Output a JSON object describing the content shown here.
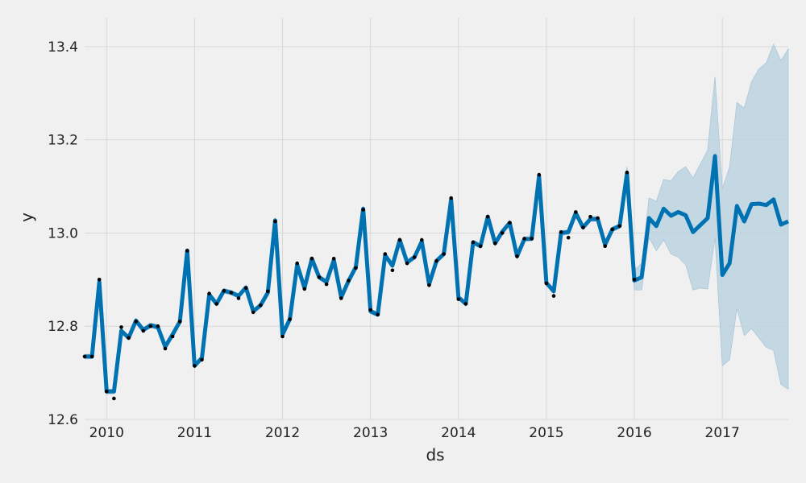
{
  "chart_data": {
    "type": "line",
    "xlabel": "ds",
    "ylabel": "y",
    "xlim": [
      2009.75,
      2017.75
    ],
    "ylim": [
      12.6,
      13.5
    ],
    "grid": true,
    "x_ticks": [
      {
        "value": 2010,
        "label": "2010"
      },
      {
        "value": 2011,
        "label": "2011"
      },
      {
        "value": 2012,
        "label": "2012"
      },
      {
        "value": 2013,
        "label": "2013"
      },
      {
        "value": 2014,
        "label": "2014"
      },
      {
        "value": 2015,
        "label": "2015"
      },
      {
        "value": 2016,
        "label": "2016"
      },
      {
        "value": 2017,
        "label": "2017"
      }
    ],
    "y_ticks": [
      {
        "value": 12.6,
        "label": "12.6"
      },
      {
        "value": 12.8,
        "label": "12.8"
      },
      {
        "value": 13.0,
        "label": "13.0"
      },
      {
        "value": 13.2,
        "label": "13.2"
      },
      {
        "value": 13.4,
        "label": "13.4"
      }
    ],
    "colors": {
      "forecast_line": "#0072b2",
      "uncertainty_band": "#bcd3e2",
      "observed_points": "#000000",
      "grid": "#d8d8d8",
      "background": "#f0f0f0"
    },
    "observed": {
      "x": [
        "2009-10",
        "2009-11",
        "2009-12",
        "2010-01",
        "2010-02",
        "2010-03",
        "2010-04",
        "2010-05",
        "2010-06",
        "2010-07",
        "2010-08",
        "2010-09",
        "2010-10",
        "2010-11",
        "2010-12",
        "2011-01",
        "2011-02",
        "2011-03",
        "2011-04",
        "2011-05",
        "2011-06",
        "2011-07",
        "2011-08",
        "2011-09",
        "2011-10",
        "2011-11",
        "2011-12",
        "2012-01",
        "2012-02",
        "2012-03",
        "2012-04",
        "2012-05",
        "2012-06",
        "2012-07",
        "2012-08",
        "2012-09",
        "2012-10",
        "2012-11",
        "2012-12",
        "2013-01",
        "2013-02",
        "2013-03",
        "2013-04",
        "2013-05",
        "2013-06",
        "2013-07",
        "2013-08",
        "2013-09",
        "2013-10",
        "2013-11",
        "2013-12",
        "2014-01",
        "2014-02",
        "2014-03",
        "2014-04",
        "2014-05",
        "2014-06",
        "2014-07",
        "2014-08",
        "2014-09",
        "2014-10",
        "2014-11",
        "2014-12",
        "2015-01",
        "2015-02",
        "2015-03",
        "2015-04",
        "2015-05",
        "2015-06",
        "2015-07",
        "2015-08",
        "2015-09",
        "2015-10",
        "2015-11",
        "2015-12",
        "2016-01"
      ],
      "y": [
        12.735,
        12.735,
        12.9,
        12.66,
        12.645,
        12.798,
        12.775,
        12.81,
        12.79,
        12.8,
        12.8,
        12.752,
        12.778,
        12.81,
        12.962,
        12.715,
        12.728,
        12.87,
        12.848,
        12.876,
        12.872,
        12.86,
        12.882,
        12.83,
        12.845,
        12.875,
        13.025,
        12.778,
        12.815,
        12.935,
        12.88,
        12.945,
        12.905,
        12.89,
        12.945,
        12.86,
        12.898,
        12.925,
        13.05,
        12.835,
        12.825,
        12.955,
        12.92,
        12.985,
        12.935,
        12.948,
        12.985,
        12.888,
        12.94,
        12.955,
        13.075,
        12.858,
        12.848,
        12.98,
        12.972,
        13.035,
        12.978,
        13.0,
        13.022,
        12.95,
        12.988,
        12.988,
        13.125,
        12.892,
        12.865,
        13.002,
        12.99,
        13.045,
        13.012,
        13.035,
        13.032,
        12.972,
        13.008,
        13.015,
        13.13,
        12.9
      ]
    },
    "forecast": {
      "x": [
        "2009-10",
        "2009-11",
        "2009-12",
        "2010-01",
        "2010-02",
        "2010-03",
        "2010-04",
        "2010-05",
        "2010-06",
        "2010-07",
        "2010-08",
        "2010-09",
        "2010-10",
        "2010-11",
        "2010-12",
        "2011-01",
        "2011-02",
        "2011-03",
        "2011-04",
        "2011-05",
        "2011-06",
        "2011-07",
        "2011-08",
        "2011-09",
        "2011-10",
        "2011-11",
        "2011-12",
        "2012-01",
        "2012-02",
        "2012-03",
        "2012-04",
        "2012-05",
        "2012-06",
        "2012-07",
        "2012-08",
        "2012-09",
        "2012-10",
        "2012-11",
        "2012-12",
        "2013-01",
        "2013-02",
        "2013-03",
        "2013-04",
        "2013-05",
        "2013-06",
        "2013-07",
        "2013-08",
        "2013-09",
        "2013-10",
        "2013-11",
        "2013-12",
        "2014-01",
        "2014-02",
        "2014-03",
        "2014-04",
        "2014-05",
        "2014-06",
        "2014-07",
        "2014-08",
        "2014-09",
        "2014-10",
        "2014-11",
        "2014-12",
        "2015-01",
        "2015-02",
        "2015-03",
        "2015-04",
        "2015-05",
        "2015-06",
        "2015-07",
        "2015-08",
        "2015-09",
        "2015-10",
        "2015-11",
        "2015-12",
        "2016-01",
        "2016-02",
        "2016-03",
        "2016-04",
        "2016-05",
        "2016-06",
        "2016-07",
        "2016-08",
        "2016-09",
        "2016-10",
        "2016-11",
        "2016-12",
        "2017-01",
        "2017-02",
        "2017-03",
        "2017-04",
        "2017-05",
        "2017-06",
        "2017-07",
        "2017-08",
        "2017-09",
        "2017-10"
      ],
      "yhat": [
        12.735,
        12.735,
        12.895,
        12.66,
        12.66,
        12.79,
        12.775,
        12.812,
        12.792,
        12.802,
        12.798,
        12.756,
        12.782,
        12.81,
        12.962,
        12.715,
        12.732,
        12.868,
        12.848,
        12.876,
        12.872,
        12.865,
        12.883,
        12.832,
        12.845,
        12.872,
        13.027,
        12.782,
        12.815,
        12.932,
        12.882,
        12.945,
        12.905,
        12.895,
        12.942,
        12.862,
        12.897,
        12.927,
        13.052,
        12.832,
        12.825,
        12.952,
        12.93,
        12.985,
        12.937,
        12.948,
        12.982,
        12.89,
        12.94,
        12.955,
        13.072,
        12.862,
        12.848,
        12.98,
        12.972,
        13.035,
        12.978,
        13.003,
        13.022,
        12.95,
        12.987,
        12.988,
        13.122,
        12.893,
        12.875,
        13.0,
        13.002,
        13.043,
        13.012,
        13.03,
        13.03,
        12.975,
        13.008,
        13.015,
        13.128,
        12.898,
        12.905,
        13.032,
        13.015,
        13.052,
        13.037,
        13.045,
        13.038,
        13.002,
        13.017,
        13.032,
        13.165,
        12.91,
        12.935,
        13.058,
        13.025,
        13.062,
        13.063,
        13.06,
        13.072,
        13.018,
        13.025
      ],
      "yhat_lower": [
        12.73,
        12.73,
        12.89,
        12.655,
        12.655,
        12.785,
        12.77,
        12.807,
        12.787,
        12.797,
        12.793,
        12.751,
        12.777,
        12.805,
        12.957,
        12.71,
        12.727,
        12.863,
        12.843,
        12.871,
        12.867,
        12.86,
        12.878,
        12.827,
        12.84,
        12.867,
        13.022,
        12.777,
        12.81,
        12.927,
        12.877,
        12.94,
        12.9,
        12.89,
        12.937,
        12.857,
        12.892,
        12.922,
        13.047,
        12.827,
        12.82,
        12.947,
        12.925,
        12.98,
        12.932,
        12.943,
        12.977,
        12.885,
        12.935,
        12.95,
        13.067,
        12.857,
        12.843,
        12.975,
        12.967,
        13.03,
        12.973,
        12.998,
        13.017,
        12.945,
        12.982,
        12.983,
        13.117,
        12.888,
        12.87,
        12.995,
        12.997,
        13.038,
        13.007,
        13.025,
        13.025,
        12.97,
        13.003,
        13.01,
        13.123,
        12.878,
        12.878,
        12.99,
        12.962,
        12.985,
        12.955,
        12.948,
        12.932,
        12.878,
        12.882,
        12.88,
        12.99,
        12.715,
        12.728,
        12.838,
        12.78,
        12.795,
        12.775,
        12.755,
        12.748,
        12.675,
        12.665
      ],
      "yhat_upper": [
        12.74,
        12.74,
        12.9,
        12.665,
        12.665,
        12.795,
        12.78,
        12.817,
        12.797,
        12.807,
        12.803,
        12.761,
        12.787,
        12.815,
        12.967,
        12.72,
        12.737,
        12.873,
        12.853,
        12.881,
        12.877,
        12.87,
        12.888,
        12.837,
        12.85,
        12.877,
        13.032,
        12.787,
        12.82,
        12.937,
        12.887,
        12.95,
        12.91,
        12.9,
        12.947,
        12.867,
        12.902,
        12.932,
        13.057,
        12.837,
        12.83,
        12.957,
        12.935,
        12.99,
        12.942,
        12.953,
        12.987,
        12.895,
        12.945,
        12.96,
        13.077,
        12.867,
        12.853,
        12.985,
        12.977,
        13.04,
        12.983,
        13.008,
        13.027,
        12.955,
        12.992,
        12.993,
        13.127,
        12.898,
        12.88,
        13.005,
        13.007,
        13.048,
        13.017,
        13.035,
        13.035,
        12.98,
        13.013,
        13.02,
        13.142,
        12.92,
        12.935,
        13.075,
        13.068,
        13.115,
        13.112,
        13.132,
        13.142,
        13.118,
        13.148,
        13.178,
        13.335,
        13.095,
        13.142,
        13.28,
        13.268,
        13.325,
        13.352,
        13.365,
        13.405,
        13.37,
        13.395
      ]
    }
  }
}
